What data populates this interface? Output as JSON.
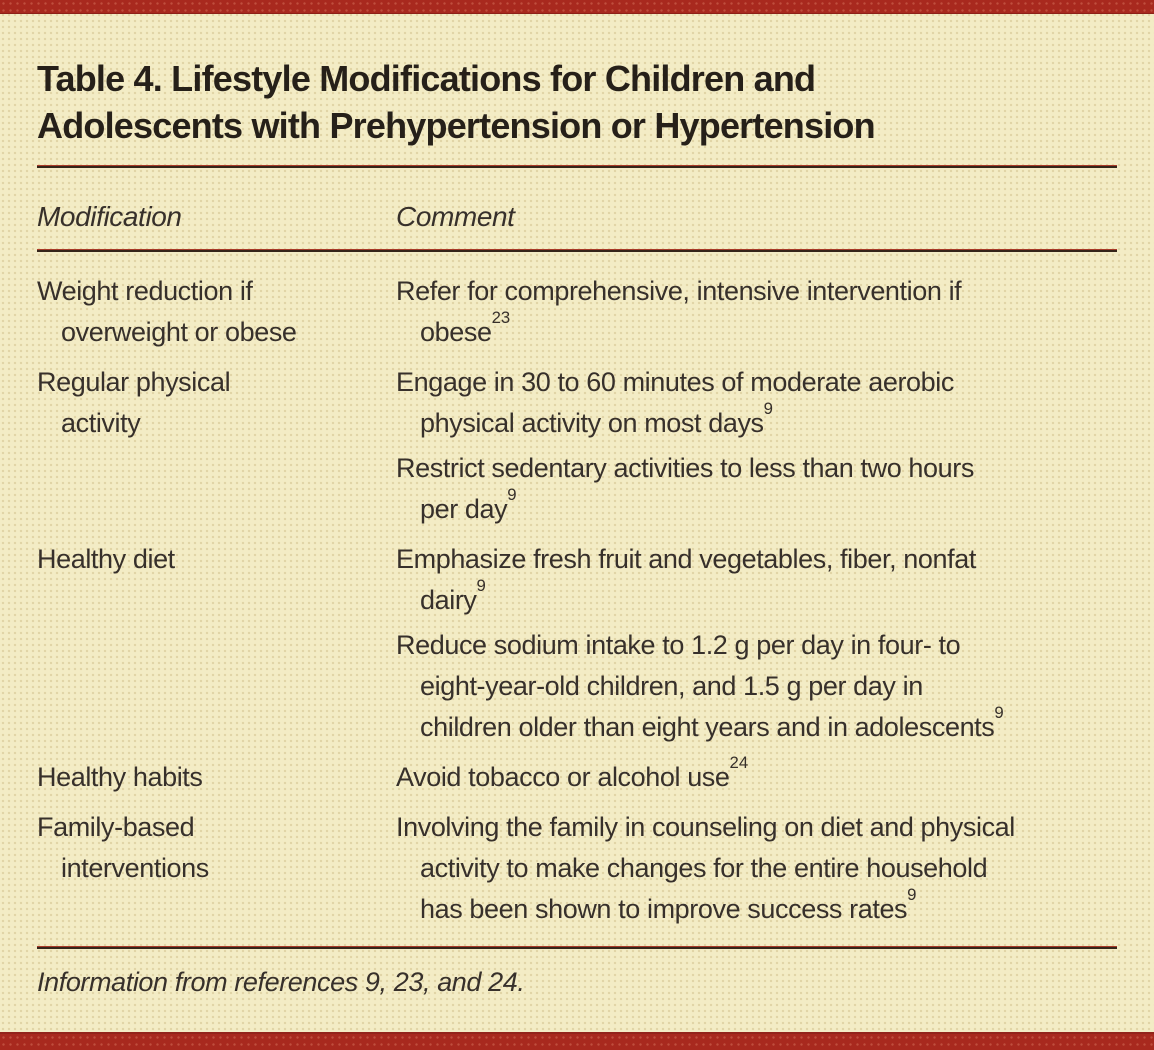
{
  "colors": {
    "accent": "#a8291e",
    "background": "#f3ecc5",
    "text": "#37302b",
    "title_text": "#262019",
    "rule_red": "#a83a28",
    "rule_dark": "#35251a"
  },
  "title": "Table 4. Lifestyle Modifications for Children and Adolescents with Prehypertension or Hypertension",
  "table": {
    "headers": {
      "modification": "Modification",
      "comment": "Comment"
    },
    "rows": [
      {
        "modification_lines": [
          "Weight reduction if",
          "overweight or obese"
        ],
        "comments": [
          {
            "lines": [
              "Refer for comprehensive, intensive intervention if",
              "obese"
            ],
            "sup": "23"
          }
        ]
      },
      {
        "modification_lines": [
          "Regular physical",
          "activity"
        ],
        "comments": [
          {
            "lines": [
              "Engage in 30 to 60 minutes of moderate aerobic",
              "physical activity on most days"
            ],
            "sup": "9"
          },
          {
            "lines": [
              "Restrict sedentary activities to less than two hours",
              "per day"
            ],
            "sup": "9"
          }
        ]
      },
      {
        "modification_lines": [
          "Healthy diet"
        ],
        "comments": [
          {
            "lines": [
              "Emphasize fresh fruit and vegetables, fiber, nonfat",
              "dairy"
            ],
            "sup": "9"
          },
          {
            "lines": [
              "Reduce sodium intake to 1.2 g per day in four- to",
              "eight-year-old children, and 1.5 g per day in",
              "children older than eight years and in adolescents"
            ],
            "sup": "9"
          }
        ]
      },
      {
        "modification_lines": [
          "Healthy habits"
        ],
        "comments": [
          {
            "lines": [
              "Avoid tobacco or alcohol use"
            ],
            "sup": "24"
          }
        ]
      },
      {
        "modification_lines": [
          "Family-based",
          "interventions"
        ],
        "comments": [
          {
            "lines": [
              "Involving the family in counseling on diet and physical",
              "activity to make changes for the entire household",
              "has been shown to improve success rates"
            ],
            "sup": "9"
          }
        ]
      }
    ]
  },
  "footnote": "Information from references 9, 23, and 24."
}
